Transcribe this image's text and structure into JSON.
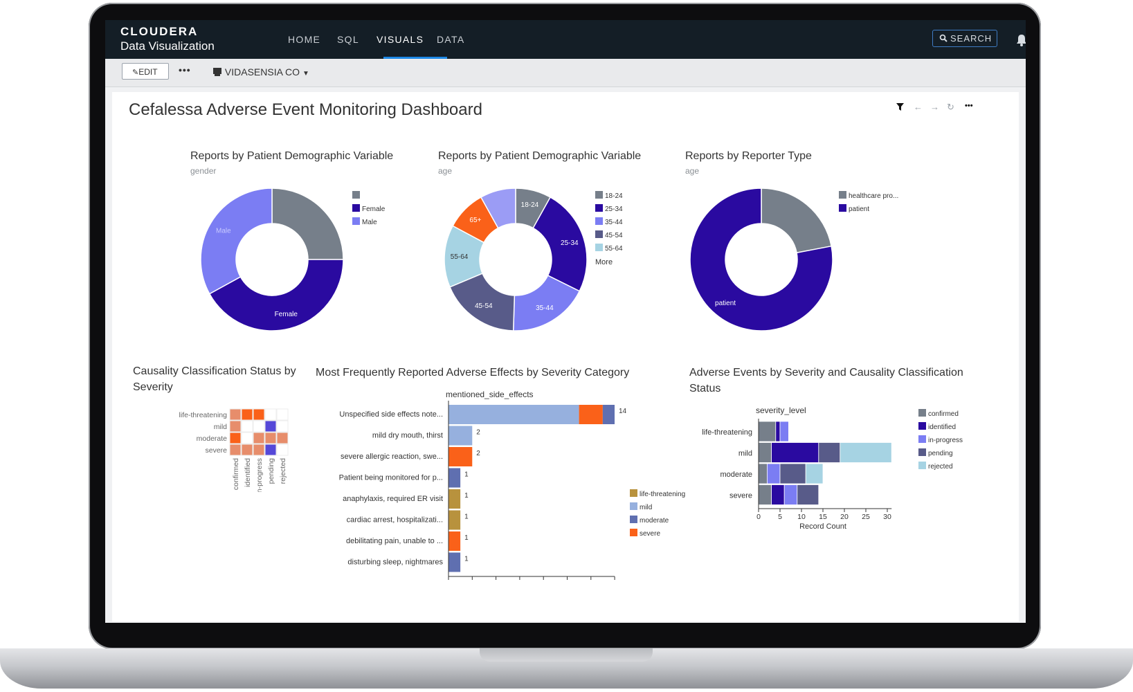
{
  "app": {
    "brand": "CLOUDERA",
    "product": "Data Visualization"
  },
  "nav": [
    {
      "label": "HOME"
    },
    {
      "label": "SQL"
    },
    {
      "label": "VISUALS"
    },
    {
      "label": "DATA"
    }
  ],
  "search": {
    "label": "SEARCH"
  },
  "toolbar": {
    "edit_label": "EDIT",
    "more_label": "•••",
    "workspace": "VIDASENSIA CO"
  },
  "dashboard": {
    "title": "Cefalessa Adverse Event Monitoring Dashboard",
    "controls_more": "•••"
  },
  "colors": {
    "gray": "#767f8a",
    "indigo": "#2a0aa0",
    "periwinkle": "#7b7df3",
    "slate": "#585b89",
    "lightblue": "#a6d3e3",
    "orange": "#fa6119",
    "gold": "#b8923d",
    "mild_blue": "#96b0de",
    "salmon": "#e78d6b",
    "topbar": "#141e26",
    "accent": "#1e88e5"
  },
  "icons": [
    "filter-icon",
    "back-arrow-icon",
    "forward-arrow-icon",
    "refresh-icon",
    "more-icon",
    "search-icon",
    "bell-icon",
    "pencil-icon",
    "workspace-icon",
    "caret-down-icon"
  ],
  "chart_data": [
    {
      "type": "pie",
      "title": "Reports by Patient Demographic Variable",
      "subtitle": "gender",
      "categories": [
        "",
        "Female",
        "Male"
      ],
      "values": [
        25,
        42,
        33
      ],
      "slice_labels": [
        "",
        "Female",
        "Male"
      ],
      "legend": [
        "",
        "Female",
        "Male"
      ],
      "legend_position": "right"
    },
    {
      "type": "pie",
      "title": "Reports by Patient Demographic Variable",
      "subtitle": "age",
      "categories": [
        "18-24",
        "25-34",
        "35-44",
        "45-54",
        "55-64",
        "65+",
        ""
      ],
      "values": [
        8,
        24,
        18,
        18,
        14,
        9,
        8
      ],
      "slice_labels": [
        "18-24",
        "25-34",
        "35-44",
        "45-54",
        "55-64",
        "65+",
        ""
      ],
      "legend": [
        "18-24",
        "25-34",
        "35-44",
        "45-54",
        "55-64"
      ],
      "legend_more": "More",
      "legend_position": "right"
    },
    {
      "type": "pie",
      "title": "Reports by Reporter Type",
      "subtitle": "age",
      "categories": [
        "healthcare pro...",
        "patient"
      ],
      "values": [
        22,
        78
      ],
      "slice_labels": [
        "",
        "patient"
      ],
      "legend": [
        "healthcare pro...",
        "patient"
      ],
      "legend_position": "right"
    },
    {
      "type": "heatmap",
      "title": "Causality Classification Status by Severity",
      "rows": [
        "life-threatening",
        "mild",
        "moderate",
        "severe"
      ],
      "columns": [
        "confirmed",
        "identified",
        "in-progress",
        "pending",
        "rejected"
      ],
      "cells": [
        [
          "salmon",
          "orange",
          "orange",
          "",
          ""
        ],
        [
          "salmon",
          "",
          "",
          "indigo",
          ""
        ],
        [
          "orange",
          "",
          "salmon",
          "salmon",
          "salmon"
        ],
        [
          "salmon",
          "salmon",
          "salmon",
          "indigo",
          ""
        ]
      ]
    },
    {
      "type": "bar",
      "orientation": "horizontal",
      "title": "Most Frequently Reported Adverse Effects by Severity Category",
      "subtitle": "mentioned_side_effects",
      "categories": [
        "Unspecified side effects note...",
        "mild dry mouth, thirst",
        "severe allergic reaction, swe...",
        "Patient being monitored for p...",
        "anaphylaxis, required ER visit",
        "cardiac arrest, hospitalizati...",
        "debilitating pain, unable to ...",
        "disturbing sleep, nightmares"
      ],
      "series": [
        {
          "name": "life-threatening",
          "values": [
            0,
            0,
            0,
            0,
            1,
            1,
            0,
            0
          ]
        },
        {
          "name": "mild",
          "values": [
            11,
            2,
            0,
            0,
            0,
            0,
            0,
            0
          ]
        },
        {
          "name": "moderate",
          "values": [
            1,
            0,
            0,
            1,
            0,
            0,
            0,
            1
          ]
        },
        {
          "name": "severe",
          "values": [
            2,
            0,
            2,
            0,
            0,
            0,
            1,
            0
          ]
        }
      ],
      "series_order": [
        "mild",
        "severe",
        "moderate",
        "life-threatening"
      ],
      "totals": [
        14,
        2,
        2,
        1,
        1,
        1,
        1,
        1
      ],
      "xlim": [
        0,
        14
      ],
      "legend_position": "right"
    },
    {
      "type": "bar",
      "orientation": "horizontal",
      "stacked": true,
      "title": "Adverse Events by Severity and Causality Classification Status",
      "subtitle": "severity_level",
      "xlabel": "Record Count",
      "categories": [
        "life-threatening",
        "mild",
        "moderate",
        "severe"
      ],
      "series": [
        {
          "name": "confirmed",
          "values": [
            4,
            3,
            2,
            3
          ]
        },
        {
          "name": "identified",
          "values": [
            1,
            11,
            0,
            3
          ]
        },
        {
          "name": "in-progress",
          "values": [
            2,
            0,
            3,
            3
          ]
        },
        {
          "name": "pending",
          "values": [
            0,
            5,
            6,
            5
          ]
        },
        {
          "name": "rejected",
          "values": [
            0,
            12,
            4,
            0
          ]
        }
      ],
      "xticks": [
        0,
        5,
        10,
        15,
        20,
        25,
        30
      ],
      "xlim": [
        0,
        31
      ],
      "legend_position": "right"
    }
  ]
}
